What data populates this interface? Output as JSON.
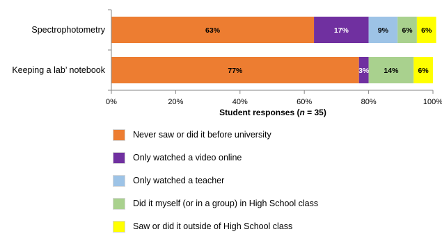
{
  "chart_data": {
    "type": "bar",
    "orientation": "horizontal",
    "stacked": true,
    "categories": [
      "Spectrophotometry",
      "Keeping a lab’ notebook"
    ],
    "series": [
      {
        "name": "Never saw or did it before university",
        "color": "#ED7D31",
        "values": [
          63,
          77
        ],
        "labels": [
          "63%",
          "77%"
        ]
      },
      {
        "name": "Only watched a video online",
        "color": "#7030A0",
        "values": [
          17,
          3
        ],
        "labels": [
          "17%",
          "3%"
        ]
      },
      {
        "name": "Only watched a teacher",
        "color": "#9DC3E6",
        "values": [
          9,
          0
        ],
        "labels": [
          "9%",
          ""
        ]
      },
      {
        "name": "Did it myself (or in a group) in High School class",
        "color": "#A9D18E",
        "values": [
          6,
          14
        ],
        "labels": [
          "6%",
          "14%"
        ]
      },
      {
        "name": "Saw or did it outside of High School class",
        "color": "#FFFF00",
        "values": [
          6,
          6
        ],
        "labels": [
          "6%",
          "6%"
        ]
      }
    ],
    "xlabel_prefix": "Student responses (",
    "xlabel_italic": "n",
    "xlabel_suffix": " = 35)",
    "xlim": [
      0,
      100
    ],
    "x_ticks": [
      "0%",
      "20%",
      "40%",
      "60%",
      "80%",
      "100%"
    ],
    "grid": false,
    "legend_position": "bottom"
  }
}
